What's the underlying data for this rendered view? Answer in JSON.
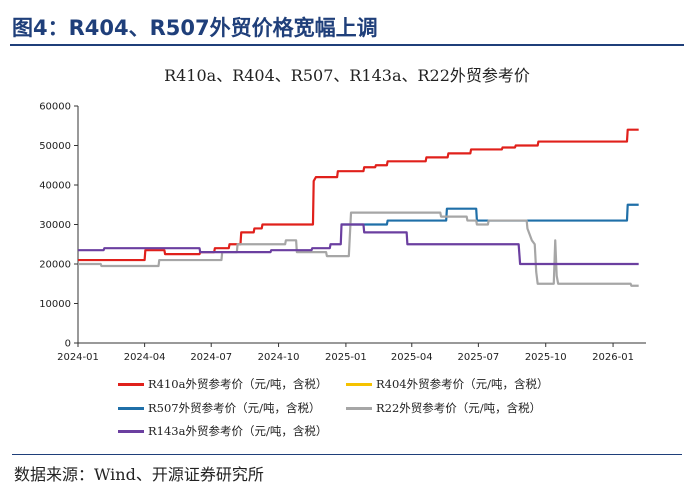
{
  "header": {
    "figure_title": "图4：R404、R507外贸价格宽幅上调"
  },
  "source_note": "数据来源：Wind、开源证券研究所",
  "chart_data": {
    "type": "line",
    "title": "R410a、R404、R507、R143a、R22外贸参考价",
    "xlabel": "",
    "ylabel": "",
    "xlim": [
      "2024-01-01",
      "2026-02-15"
    ],
    "ylim": [
      0,
      60000
    ],
    "ytick_labels": [
      "0",
      "10000",
      "20000",
      "30000",
      "40000",
      "50000",
      "60000"
    ],
    "xtick_labels": [
      "2024-01",
      "2024-04",
      "2024-07",
      "2024-10",
      "2025-01",
      "2025-04",
      "2025-07",
      "2025-10",
      "2026-01"
    ],
    "grid": false,
    "legend_position": "bottom",
    "series": [
      {
        "name": "R410a外贸参考价（元/吨，含税）",
        "color": "#e0201b",
        "points": [
          [
            "2024-01-01",
            21000
          ],
          [
            "2024-04-01",
            21000
          ],
          [
            "2024-04-02",
            23500
          ],
          [
            "2024-04-28",
            23500
          ],
          [
            "2024-04-29",
            22500
          ],
          [
            "2024-06-15",
            22500
          ],
          [
            "2024-06-16",
            23000
          ],
          [
            "2024-07-05",
            23000
          ],
          [
            "2024-07-06",
            24000
          ],
          [
            "2024-07-25",
            24000
          ],
          [
            "2024-07-26",
            25000
          ],
          [
            "2024-08-10",
            25000
          ],
          [
            "2024-08-11",
            28000
          ],
          [
            "2024-08-28",
            28000
          ],
          [
            "2024-08-29",
            29000
          ],
          [
            "2024-09-08",
            29000
          ],
          [
            "2024-09-09",
            30000
          ],
          [
            "2024-11-17",
            30000
          ],
          [
            "2024-11-18",
            41000
          ],
          [
            "2024-11-21",
            42000
          ],
          [
            "2024-12-20",
            42000
          ],
          [
            "2024-12-21",
            43500
          ],
          [
            "2025-01-25",
            43500
          ],
          [
            "2025-01-26",
            44500
          ],
          [
            "2025-02-10",
            44500
          ],
          [
            "2025-02-11",
            45000
          ],
          [
            "2025-02-26",
            45000
          ],
          [
            "2025-02-27",
            46000
          ],
          [
            "2025-04-20",
            46000
          ],
          [
            "2025-04-21",
            47000
          ],
          [
            "2025-05-20",
            47000
          ],
          [
            "2025-05-21",
            48000
          ],
          [
            "2025-06-20",
            48000
          ],
          [
            "2025-06-21",
            49000
          ],
          [
            "2025-08-02",
            49000
          ],
          [
            "2025-08-03",
            49500
          ],
          [
            "2025-08-20",
            49500
          ],
          [
            "2025-08-21",
            50000
          ],
          [
            "2025-09-20",
            50000
          ],
          [
            "2025-09-21",
            51000
          ],
          [
            "2026-01-20",
            51000
          ],
          [
            "2026-01-21",
            54000
          ],
          [
            "2026-02-05",
            54000
          ]
        ]
      },
      {
        "name": "R404外贸参考价（元/吨，含税）",
        "color": "#f5c200",
        "points": []
      },
      {
        "name": "R507外贸参考价（元/吨，含税）",
        "color": "#1f6fa8",
        "points": [
          [
            "2024-12-25",
            30000
          ],
          [
            "2025-02-26",
            30000
          ],
          [
            "2025-02-27",
            31000
          ],
          [
            "2025-05-18",
            31000
          ],
          [
            "2025-05-19",
            34000
          ],
          [
            "2025-06-28",
            34000
          ],
          [
            "2025-06-29",
            31000
          ],
          [
            "2026-01-20",
            31000
          ],
          [
            "2026-01-21",
            35000
          ],
          [
            "2026-02-05",
            35000
          ]
        ]
      },
      {
        "name": "R22外贸参考价（元/吨，含税）",
        "color": "#a6a6a6",
        "points": [
          [
            "2024-01-01",
            20000
          ],
          [
            "2024-02-01",
            20000
          ],
          [
            "2024-02-02",
            19500
          ],
          [
            "2024-04-20",
            19500
          ],
          [
            "2024-04-21",
            21000
          ],
          [
            "2024-07-15",
            21000
          ],
          [
            "2024-07-16",
            23000
          ],
          [
            "2024-08-05",
            23000
          ],
          [
            "2024-08-06",
            25000
          ],
          [
            "2024-10-10",
            25000
          ],
          [
            "2024-10-11",
            26000
          ],
          [
            "2024-10-25",
            26000
          ],
          [
            "2024-10-26",
            23000
          ],
          [
            "2024-12-05",
            23000
          ],
          [
            "2024-12-06",
            22000
          ],
          [
            "2025-01-05",
            22000
          ],
          [
            "2025-01-08",
            33000
          ],
          [
            "2025-05-10",
            33000
          ],
          [
            "2025-05-11",
            32000
          ],
          [
            "2025-06-15",
            32000
          ],
          [
            "2025-06-16",
            31000
          ],
          [
            "2025-06-28",
            31000
          ],
          [
            "2025-06-29",
            30000
          ],
          [
            "2025-07-14",
            30000
          ],
          [
            "2025-07-15",
            31000
          ],
          [
            "2025-09-05",
            31000
          ],
          [
            "2025-09-06",
            29000
          ],
          [
            "2025-09-12",
            26000
          ],
          [
            "2025-09-16",
            25000
          ],
          [
            "2025-09-18",
            18000
          ],
          [
            "2025-09-20",
            15000
          ],
          [
            "2025-10-12",
            15000
          ],
          [
            "2025-10-14",
            26000
          ],
          [
            "2025-10-16",
            17000
          ],
          [
            "2025-10-18",
            15000
          ],
          [
            "2026-01-25",
            15000
          ],
          [
            "2026-01-26",
            14500
          ],
          [
            "2026-02-05",
            14500
          ]
        ]
      },
      {
        "name": "R143a外贸参考价（元/吨，含税）",
        "color": "#6b3fa0",
        "points": [
          [
            "2024-01-01",
            23500
          ],
          [
            "2024-02-05",
            23500
          ],
          [
            "2024-02-06",
            24000
          ],
          [
            "2024-06-15",
            24000
          ],
          [
            "2024-06-16",
            23000
          ],
          [
            "2024-09-20",
            23000
          ],
          [
            "2024-09-21",
            23500
          ],
          [
            "2024-11-15",
            23500
          ],
          [
            "2024-11-16",
            24000
          ],
          [
            "2024-12-10",
            24000
          ],
          [
            "2024-12-11",
            25000
          ],
          [
            "2024-12-25",
            25000
          ],
          [
            "2024-12-26",
            30000
          ],
          [
            "2025-01-25",
            30000
          ],
          [
            "2025-01-26",
            28000
          ],
          [
            "2025-03-25",
            28000
          ],
          [
            "2025-03-26",
            25000
          ],
          [
            "2025-08-25",
            25000
          ],
          [
            "2025-08-27",
            20000
          ],
          [
            "2026-02-05",
            20000
          ]
        ]
      }
    ]
  }
}
